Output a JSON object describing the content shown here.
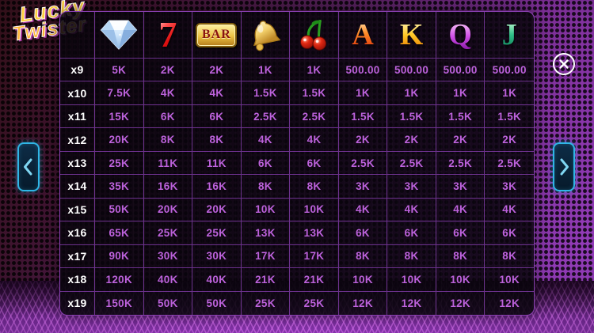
{
  "logo": {
    "line1": "Lucky",
    "line2": "Twister"
  },
  "paytable": {
    "symbols": [
      {
        "name": "diamond",
        "label": ""
      },
      {
        "name": "seven",
        "label": "7"
      },
      {
        "name": "bar",
        "label": "BAR"
      },
      {
        "name": "bell",
        "label": ""
      },
      {
        "name": "cherries",
        "label": ""
      },
      {
        "name": "ace",
        "label": "A"
      },
      {
        "name": "king",
        "label": "K"
      },
      {
        "name": "queen",
        "label": "Q"
      },
      {
        "name": "jack",
        "label": "J"
      }
    ],
    "rows": [
      {
        "multiplier": "x9",
        "values": [
          "5K",
          "2K",
          "2K",
          "1K",
          "1K",
          "500.00",
          "500.00",
          "500.00",
          "500.00"
        ]
      },
      {
        "multiplier": "x10",
        "values": [
          "7.5K",
          "4K",
          "4K",
          "1.5K",
          "1.5K",
          "1K",
          "1K",
          "1K",
          "1K"
        ]
      },
      {
        "multiplier": "x11",
        "values": [
          "15K",
          "6K",
          "6K",
          "2.5K",
          "2.5K",
          "1.5K",
          "1.5K",
          "1.5K",
          "1.5K"
        ]
      },
      {
        "multiplier": "x12",
        "values": [
          "20K",
          "8K",
          "8K",
          "4K",
          "4K",
          "2K",
          "2K",
          "2K",
          "2K"
        ]
      },
      {
        "multiplier": "x13",
        "values": [
          "25K",
          "11K",
          "11K",
          "6K",
          "6K",
          "2.5K",
          "2.5K",
          "2.5K",
          "2.5K"
        ]
      },
      {
        "multiplier": "x14",
        "values": [
          "35K",
          "16K",
          "16K",
          "8K",
          "8K",
          "3K",
          "3K",
          "3K",
          "3K"
        ]
      },
      {
        "multiplier": "x15",
        "values": [
          "50K",
          "20K",
          "20K",
          "10K",
          "10K",
          "4K",
          "4K",
          "4K",
          "4K"
        ]
      },
      {
        "multiplier": "x16",
        "values": [
          "65K",
          "25K",
          "25K",
          "13K",
          "13K",
          "6K",
          "6K",
          "6K",
          "6K"
        ]
      },
      {
        "multiplier": "x17",
        "values": [
          "90K",
          "30K",
          "30K",
          "17K",
          "17K",
          "8K",
          "8K",
          "8K",
          "8K"
        ]
      },
      {
        "multiplier": "x18",
        "values": [
          "120K",
          "40K",
          "40K",
          "21K",
          "21K",
          "10K",
          "10K",
          "10K",
          "10K"
        ]
      },
      {
        "multiplier": "x19",
        "values": [
          "150K",
          "50K",
          "50K",
          "25K",
          "25K",
          "12K",
          "12K",
          "12K",
          "12K"
        ]
      }
    ]
  },
  "colors": {
    "value_text": "#bd62dc",
    "row_label_text": "#ffffff",
    "grid_line": "#863eb0",
    "nav_border": "#2fb6e6",
    "close_border": "#ffffff",
    "background_accent": "#9940c2"
  }
}
